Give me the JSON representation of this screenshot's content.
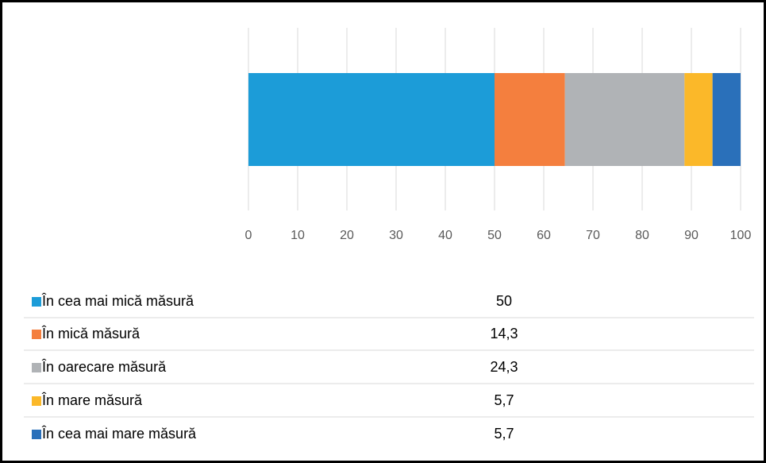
{
  "chart_data": {
    "type": "bar",
    "orientation": "horizontal",
    "stacked": true,
    "series": [
      {
        "name": "În cea mai mică măsură",
        "color": "#1c9cd8",
        "values": [
          50
        ],
        "value_labels": [
          "50"
        ]
      },
      {
        "name": "În mică măsură",
        "color": "#f47f3e",
        "values": [
          14.3
        ],
        "value_labels": [
          "14,3"
        ]
      },
      {
        "name": "În oarecare măsură",
        "color": "#b0b3b6",
        "values": [
          24.3
        ],
        "value_labels": [
          "24,3"
        ]
      },
      {
        "name": "În mare măsură",
        "color": "#fbb829",
        "values": [
          5.7
        ],
        "value_labels": [
          "5,7"
        ]
      },
      {
        "name": "În cea mai mare măsură",
        "color": "#2a70ba",
        "values": [
          5.7
        ],
        "value_labels": [
          "5,7"
        ]
      }
    ],
    "xlim": [
      0,
      100
    ],
    "xticks": [
      0,
      10,
      20,
      30,
      40,
      50,
      60,
      70,
      80,
      90,
      100
    ],
    "grid": true
  }
}
